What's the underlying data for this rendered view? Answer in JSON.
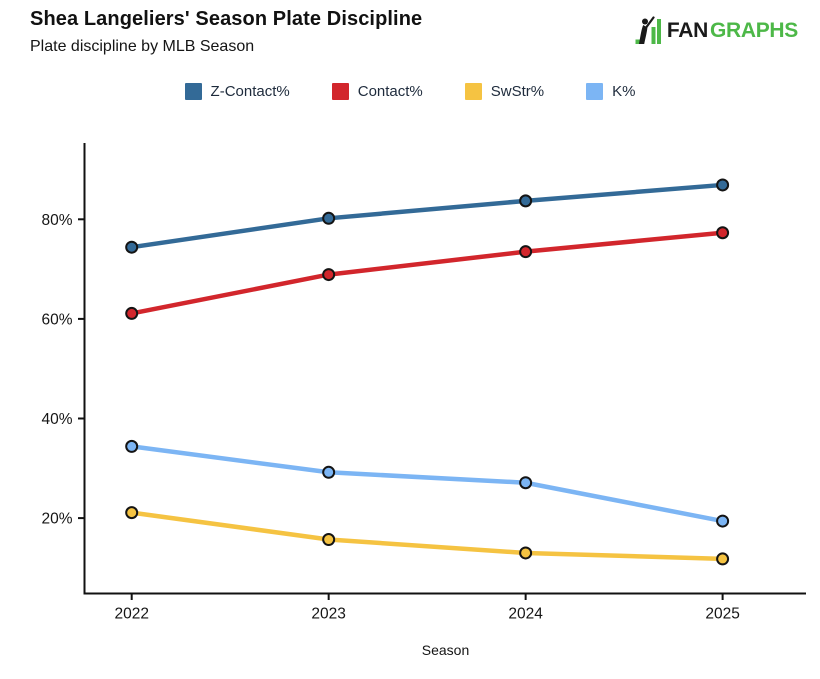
{
  "logo": {
    "fan": "FAN",
    "graphs": "GRAPHS",
    "green": "#4DB848",
    "dark": "#1A1A1A"
  },
  "colors": {
    "axis": "#111111",
    "tick_text": "#151515",
    "legend_text": "#1E2B3C",
    "point_outline": "#141414",
    "background": "#FFFFFF"
  },
  "chart_data": {
    "type": "line",
    "title": "Shea Langeliers' Season Plate Discipline",
    "subtitle": "Plate discipline by MLB Season",
    "xlabel": "Season",
    "categories": [
      "2022",
      "2023",
      "2024",
      "2025"
    ],
    "series": [
      {
        "name": "Z-Contact%",
        "color": "#336A97",
        "values": [
          74.4,
          80.2,
          83.7,
          86.9
        ]
      },
      {
        "name": "Contact%",
        "color": "#D2262C",
        "values": [
          61.1,
          68.9,
          73.5,
          77.3
        ]
      },
      {
        "name": "SwStr%",
        "color": "#F5C342",
        "values": [
          21.1,
          15.7,
          13.0,
          11.8
        ]
      },
      {
        "name": "K%",
        "color": "#7CB5F4",
        "values": [
          34.4,
          29.2,
          27.1,
          19.4
        ]
      }
    ],
    "yticks": [
      {
        "value": 20,
        "label": "20%"
      },
      {
        "value": 40,
        "label": "40%"
      },
      {
        "value": 60,
        "label": "60%"
      },
      {
        "value": 80,
        "label": "80%"
      }
    ],
    "ylim": [
      5,
      95
    ],
    "grid": false,
    "legend_position": "top"
  }
}
